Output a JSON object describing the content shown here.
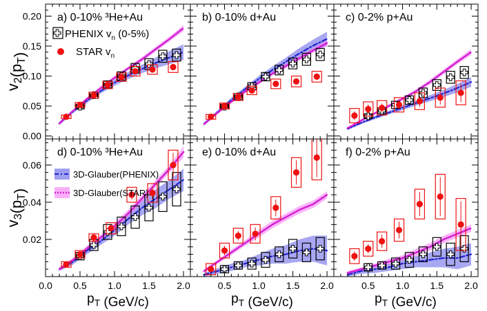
{
  "figure": {
    "xlabel": "p_T (GeV/c)",
    "ylabel_top": "v_2(p_T)",
    "ylabel_bottom": "v_3(p_T)",
    "xlim": [
      0,
      2.1
    ],
    "xticks": [
      0.0,
      0.5,
      1.0,
      1.5,
      2.0
    ],
    "xtick_labels": [
      "0.0",
      "0.5",
      "1.0",
      "1.5",
      "2.0"
    ]
  },
  "rows": [
    {
      "ylim": [
        -0.005,
        0.22
      ],
      "yticks": [
        0.0,
        0.05,
        0.1,
        0.15,
        0.2
      ],
      "ytick_labels": [
        "0.00",
        "0.05",
        "0.10",
        "0.15",
        "0.20"
      ]
    },
    {
      "ylim": [
        0.0,
        0.074
      ],
      "yticks": [
        0.02,
        0.04,
        0.06
      ],
      "ytick_labels": [
        "0.02",
        "0.04",
        "0.06"
      ]
    }
  ],
  "legend_top": {
    "position": "top-left of panel a",
    "entries": [
      {
        "label": "PHENIX v_n (0-5%)",
        "marker": "open-cross",
        "color": "#000000"
      },
      {
        "label": "STAR v_n",
        "marker": "filled-circle",
        "color": "#ee1111"
      }
    ]
  },
  "legend_bottom": {
    "position": "left of panel d",
    "entries": [
      {
        "label": "3D-Glauber(PHENIX)",
        "style": "blue band with dash-dotted line",
        "color": "#3b3bdd"
      },
      {
        "label": "3D-Glauber(STAR)",
        "style": "magenta band with dotted line",
        "color": "#e633e6"
      }
    ]
  },
  "chart_data": [
    {
      "type": "scatter",
      "panel": "a",
      "label": "a) 0-10% ³He+Au",
      "observable": "v2",
      "series": [
        {
          "name": "PHENIX v_n (0-5%)",
          "x": [
            0.5,
            0.7,
            0.9,
            1.1,
            1.3,
            1.5,
            1.7,
            1.9
          ],
          "y": [
            0.049,
            0.068,
            0.086,
            0.1,
            0.113,
            0.12,
            0.133,
            0.135
          ],
          "sys": [
            0.004,
            0.005,
            0.006,
            0.007,
            0.008,
            0.009,
            0.01,
            0.01
          ]
        },
        {
          "name": "STAR v_n",
          "x": [
            0.3,
            0.5,
            0.7,
            0.9,
            1.1,
            1.3,
            1.55,
            1.85
          ],
          "y": [
            0.032,
            0.052,
            0.068,
            0.085,
            0.098,
            0.108,
            0.111,
            0.115
          ],
          "sys": [
            0.003,
            0.004,
            0.005,
            0.006,
            0.007,
            0.008,
            0.008,
            0.009
          ]
        },
        {
          "name": "3D-Glauber(PHENIX)",
          "x": [
            0.2,
            0.4,
            0.6,
            0.8,
            1.0,
            1.2,
            1.4,
            1.6,
            1.8,
            2.0
          ],
          "y": [
            0.021,
            0.041,
            0.059,
            0.075,
            0.089,
            0.101,
            0.112,
            0.122,
            0.131,
            0.14
          ],
          "band": [
            0.003,
            0.003,
            0.004,
            0.004,
            0.005,
            0.006,
            0.007,
            0.009,
            0.011,
            0.013
          ]
        },
        {
          "name": "3D-Glauber(STAR)",
          "x": [
            0.2,
            0.4,
            0.6,
            0.8,
            1.0,
            1.2,
            1.4,
            1.6,
            1.8,
            2.0
          ],
          "y": [
            0.021,
            0.042,
            0.062,
            0.08,
            0.097,
            0.113,
            0.128,
            0.145,
            0.162,
            0.18
          ],
          "band": [
            0.002,
            0.002,
            0.002,
            0.003,
            0.003,
            0.003,
            0.004,
            0.004,
            0.004,
            0.005
          ]
        }
      ]
    },
    {
      "type": "scatter",
      "panel": "b",
      "label": "b) 0-10% d+Au",
      "observable": "v2",
      "series": [
        {
          "name": "PHENIX v_n (0-5%)",
          "x": [
            0.5,
            0.7,
            0.9,
            1.1,
            1.3,
            1.5,
            1.7,
            1.9
          ],
          "y": [
            0.049,
            0.066,
            0.083,
            0.099,
            0.11,
            0.121,
            0.128,
            0.136
          ],
          "sys": [
            0.004,
            0.005,
            0.006,
            0.007,
            0.008,
            0.009,
            0.01,
            0.01
          ]
        },
        {
          "name": "STAR v_n",
          "x": [
            0.3,
            0.5,
            0.7,
            0.9,
            1.25,
            1.55,
            1.85
          ],
          "y": [
            0.032,
            0.05,
            0.065,
            0.076,
            0.087,
            0.091,
            0.099
          ],
          "sys": [
            0.004,
            0.005,
            0.006,
            0.007,
            0.008,
            0.009,
            0.009
          ]
        },
        {
          "name": "3D-Glauber(PHENIX)",
          "x": [
            0.2,
            0.4,
            0.6,
            0.8,
            1.0,
            1.2,
            1.4,
            1.6,
            1.8,
            2.0
          ],
          "y": [
            0.02,
            0.04,
            0.06,
            0.078,
            0.095,
            0.11,
            0.124,
            0.138,
            0.151,
            0.162
          ],
          "band": [
            0.003,
            0.003,
            0.004,
            0.004,
            0.005,
            0.006,
            0.007,
            0.009,
            0.01,
            0.012
          ]
        },
        {
          "name": "3D-Glauber(STAR)",
          "x": [
            0.2,
            0.4,
            0.6,
            0.8,
            1.0,
            1.2,
            1.4,
            1.6,
            1.8,
            2.0
          ],
          "y": [
            0.02,
            0.039,
            0.057,
            0.074,
            0.089,
            0.104,
            0.117,
            0.13,
            0.143,
            0.155
          ],
          "band": [
            0.002,
            0.002,
            0.002,
            0.003,
            0.003,
            0.003,
            0.004,
            0.004,
            0.004,
            0.005
          ]
        }
      ]
    },
    {
      "type": "scatter",
      "panel": "c",
      "label": "c) 0-2% p+Au",
      "observable": "v2",
      "series": [
        {
          "name": "PHENIX v_n (0-5%)",
          "x": [
            0.5,
            0.7,
            0.9,
            1.1,
            1.3,
            1.5,
            1.7,
            1.9
          ],
          "y": [
            0.033,
            0.042,
            0.052,
            0.06,
            0.072,
            0.085,
            0.098,
            0.106
          ],
          "sys": [
            0.004,
            0.005,
            0.006,
            0.007,
            0.008,
            0.009,
            0.01,
            0.01
          ]
        },
        {
          "name": "STAR v_n",
          "x": [
            0.3,
            0.5,
            0.7,
            0.95,
            1.25,
            1.55,
            1.85
          ],
          "y": [
            0.034,
            0.045,
            0.047,
            0.052,
            0.058,
            0.064,
            0.072
          ],
          "sys": [
            0.012,
            0.012,
            0.012,
            0.012,
            0.014,
            0.016,
            0.02
          ]
        },
        {
          "name": "3D-Glauber(PHENIX)",
          "x": [
            0.2,
            0.4,
            0.6,
            0.8,
            1.0,
            1.2,
            1.4,
            1.6,
            1.8,
            2.0
          ],
          "y": [
            0.012,
            0.022,
            0.031,
            0.039,
            0.047,
            0.055,
            0.063,
            0.071,
            0.08,
            0.09
          ],
          "band": [
            0.002,
            0.002,
            0.003,
            0.003,
            0.004,
            0.004,
            0.005,
            0.006,
            0.007,
            0.008
          ]
        },
        {
          "name": "3D-Glauber(STAR)",
          "x": [
            0.2,
            0.4,
            0.6,
            0.8,
            1.0,
            1.2,
            1.4,
            1.6,
            1.8,
            2.0
          ],
          "y": [
            0.013,
            0.026,
            0.038,
            0.05,
            0.062,
            0.075,
            0.09,
            0.107,
            0.124,
            0.14
          ],
          "band": [
            0.002,
            0.002,
            0.002,
            0.003,
            0.003,
            0.003,
            0.004,
            0.004,
            0.004,
            0.005
          ]
        }
      ]
    },
    {
      "type": "scatter",
      "panel": "d",
      "label": "d) 0-10% ³He+Au",
      "observable": "v3",
      "series": [
        {
          "name": "PHENIX v_n (0-5%)",
          "x": [
            0.5,
            0.7,
            0.9,
            1.1,
            1.3,
            1.5,
            1.7,
            1.9
          ],
          "y": [
            0.011,
            0.017,
            0.024,
            0.027,
            0.032,
            0.037,
            0.043,
            0.047
          ],
          "sys": [
            0.002,
            0.003,
            0.004,
            0.005,
            0.006,
            0.007,
            0.008,
            0.009
          ]
        },
        {
          "name": "STAR v_n",
          "x": [
            0.3,
            0.5,
            0.7,
            0.95,
            1.25,
            1.55,
            1.85
          ],
          "y": [
            0.0065,
            0.012,
            0.021,
            0.026,
            0.044,
            0.045,
            0.06
          ],
          "sys": [
            0.0015,
            0.002,
            0.002,
            0.003,
            0.004,
            0.005,
            0.008
          ]
        },
        {
          "name": "3D-Glauber(PHENIX)",
          "x": [
            0.2,
            0.4,
            0.6,
            0.8,
            1.0,
            1.2,
            1.4,
            1.6,
            1.8,
            2.0
          ],
          "y": [
            0.004,
            0.008,
            0.014,
            0.019,
            0.025,
            0.031,
            0.037,
            0.042,
            0.047,
            0.052
          ],
          "band": [
            0.001,
            0.0015,
            0.002,
            0.002,
            0.003,
            0.003,
            0.004,
            0.005,
            0.005,
            0.006
          ]
        },
        {
          "name": "3D-Glauber(STAR)",
          "x": [
            0.2,
            0.4,
            0.6,
            0.8,
            1.0,
            1.2,
            1.4,
            1.6,
            1.8,
            2.0
          ],
          "y": [
            0.004,
            0.009,
            0.015,
            0.021,
            0.027,
            0.034,
            0.042,
            0.05,
            0.058,
            0.067
          ],
          "band": [
            0.001,
            0.001,
            0.0015,
            0.0015,
            0.002,
            0.002,
            0.002,
            0.002,
            0.002,
            0.003
          ]
        }
      ]
    },
    {
      "type": "scatter",
      "panel": "e",
      "label": "e) 0-10% d+Au",
      "observable": "v3",
      "series": [
        {
          "name": "PHENIX v_n (0-5%)",
          "x": [
            0.5,
            0.7,
            0.9,
            1.1,
            1.3,
            1.5,
            1.7,
            1.9
          ],
          "y": [
            0.004,
            0.006,
            0.007,
            0.009,
            0.012,
            0.015,
            0.013,
            0.015
          ],
          "sys": [
            0.002,
            0.002,
            0.003,
            0.004,
            0.004,
            0.005,
            0.005,
            0.006
          ]
        },
        {
          "name": "STAR v_n",
          "x": [
            0.3,
            0.5,
            0.7,
            0.95,
            1.25,
            1.55,
            1.85
          ],
          "y": [
            0.004,
            0.014,
            0.022,
            0.023,
            0.037,
            0.056,
            0.064
          ],
          "sys": [
            0.003,
            0.004,
            0.004,
            0.005,
            0.006,
            0.008,
            0.012
          ]
        },
        {
          "name": "3D-Glauber(PHENIX)",
          "x": [
            0.2,
            0.4,
            0.6,
            0.8,
            1.0,
            1.2,
            1.4,
            1.6,
            1.8,
            2.0
          ],
          "y": [
            0.001,
            0.003,
            0.005,
            0.007,
            0.009,
            0.011,
            0.012,
            0.014,
            0.015,
            0.014
          ],
          "band": [
            0.001,
            0.0015,
            0.002,
            0.002,
            0.003,
            0.004,
            0.005,
            0.006,
            0.007,
            0.008
          ]
        },
        {
          "name": "3D-Glauber(STAR)",
          "x": [
            0.2,
            0.4,
            0.6,
            0.8,
            1.0,
            1.2,
            1.4,
            1.6,
            1.8,
            2.0
          ],
          "y": [
            0.003,
            0.008,
            0.013,
            0.018,
            0.023,
            0.028,
            0.032,
            0.036,
            0.039,
            0.044
          ],
          "band": [
            0.001,
            0.001,
            0.0015,
            0.0015,
            0.002,
            0.002,
            0.002,
            0.002,
            0.002,
            0.002
          ]
        }
      ]
    },
    {
      "type": "scatter",
      "panel": "f",
      "label": "f) 0-2% p+Au",
      "observable": "v3",
      "series": [
        {
          "name": "PHENIX v_n (0-5%)",
          "x": [
            0.5,
            0.7,
            0.9,
            1.1,
            1.3,
            1.5,
            1.7,
            1.9
          ],
          "y": [
            0.005,
            0.006,
            0.007,
            0.009,
            0.012,
            0.016,
            0.012,
            0.015
          ],
          "sys": [
            0.002,
            0.002,
            0.003,
            0.004,
            0.004,
            0.005,
            0.006,
            0.007
          ]
        },
        {
          "name": "STAR v_n",
          "x": [
            0.3,
            0.5,
            0.7,
            0.95,
            1.25,
            1.55,
            1.85
          ],
          "y": [
            0.011,
            0.015,
            0.019,
            0.025,
            0.039,
            0.043,
            0.028
          ],
          "sys": [
            0.004,
            0.004,
            0.005,
            0.006,
            0.008,
            0.012,
            0.014
          ]
        },
        {
          "name": "3D-Glauber(PHENIX)",
          "x": [
            0.2,
            0.4,
            0.6,
            0.8,
            1.0,
            1.2,
            1.4,
            1.6,
            1.8,
            2.0
          ],
          "y": [
            0.001,
            0.003,
            0.004,
            0.005,
            0.007,
            0.008,
            0.009,
            0.01,
            0.01,
            0.012
          ],
          "band": [
            0.001,
            0.0015,
            0.002,
            0.002,
            0.003,
            0.003,
            0.004,
            0.005,
            0.006,
            0.006
          ]
        },
        {
          "name": "3D-Glauber(STAR)",
          "x": [
            0.2,
            0.4,
            0.6,
            0.8,
            1.0,
            1.2,
            1.4,
            1.6,
            1.8,
            2.0
          ],
          "y": [
            0.002,
            0.004,
            0.006,
            0.008,
            0.01,
            0.013,
            0.016,
            0.02,
            0.023,
            0.026
          ],
          "band": [
            0.001,
            0.001,
            0.001,
            0.0015,
            0.0015,
            0.002,
            0.002,
            0.002,
            0.002,
            0.002
          ]
        }
      ]
    }
  ]
}
